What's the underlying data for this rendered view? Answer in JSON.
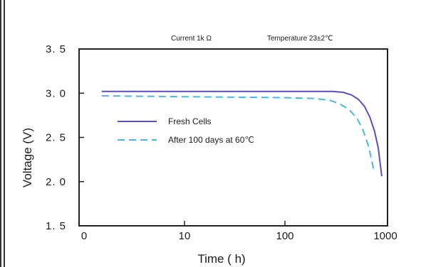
{
  "chart_data": {
    "type": "line",
    "header_left": "Current  1k Ω",
    "header_right": "Temperature  23±2℃",
    "xlabel": "Time ( h)",
    "ylabel": "Voltage (V)",
    "x_scale": "log",
    "x_ticks": [
      "0",
      "10",
      "100",
      "1000"
    ],
    "y_ticks": [
      "3. 5",
      "3. 0",
      "2. 5",
      "2. 0",
      "1. 5"
    ],
    "ylim": [
      1.5,
      3.5
    ],
    "series": [
      {
        "name": "Fresh Cells",
        "style": "solid",
        "color": "#5b4fb8",
        "points": [
          [
            1.5,
            3.02
          ],
          [
            10,
            3.02
          ],
          [
            100,
            3.02
          ],
          [
            300,
            3.02
          ],
          [
            380,
            3.01
          ],
          [
            460,
            2.98
          ],
          [
            540,
            2.93
          ],
          [
            620,
            2.85
          ],
          [
            700,
            2.73
          ],
          [
            780,
            2.57
          ],
          [
            850,
            2.38
          ],
          [
            920,
            2.06
          ]
        ]
      },
      {
        "name": "After  100  days  at  60℃",
        "style": "dashed",
        "color": "#45b8e6",
        "points": [
          [
            1.5,
            2.97
          ],
          [
            10,
            2.96
          ],
          [
            100,
            2.95
          ],
          [
            200,
            2.94
          ],
          [
            280,
            2.92
          ],
          [
            350,
            2.88
          ],
          [
            430,
            2.82
          ],
          [
            520,
            2.72
          ],
          [
            600,
            2.58
          ],
          [
            680,
            2.4
          ],
          [
            750,
            2.18
          ],
          [
            770,
            2.1
          ]
        ]
      }
    ],
    "legend_position": "inside-left"
  }
}
